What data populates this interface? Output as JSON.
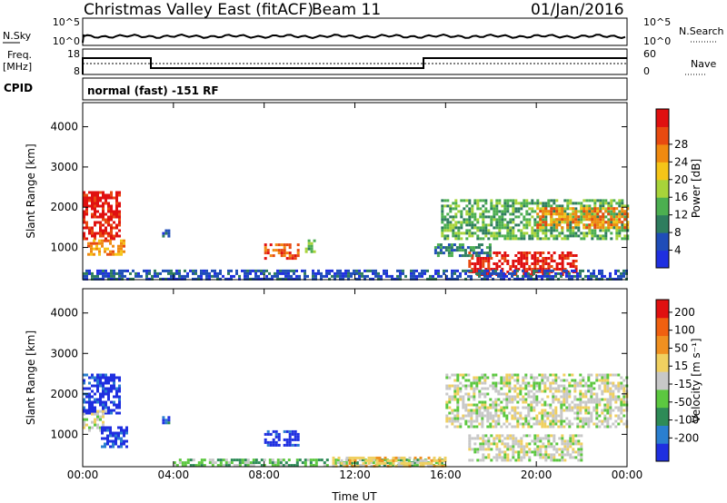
{
  "header": {
    "station": "Christmas Valley East (fitACF)",
    "beam": "Beam 11",
    "date": "01/Jan/2016"
  },
  "top_panels": {
    "nsky_label": "N.Sky",
    "nsky_ticks": [
      "10^5",
      "10^0"
    ],
    "nsearch_label": "N.Search",
    "nsearch_ticks": [
      "10^5",
      "10^0"
    ],
    "freq_label": "Freq.",
    "freq_unit": "[MHz]",
    "freq_ticks": [
      "18",
      "8"
    ],
    "nave_label": "Nave",
    "nave_ticks": [
      "60",
      "0"
    ],
    "cpid_label": "CPID",
    "cpid_text": "normal (fast) -151 RF"
  },
  "chart_data": [
    {
      "type": "heatmap",
      "name": "power",
      "ylabel": "Slant Range [km]",
      "y_ticks": [
        "1000",
        "2000",
        "3000",
        "4000"
      ],
      "y_tick_values": [
        1000,
        2000,
        3000,
        4000
      ],
      "ylim": [
        200,
        4600
      ],
      "x_ticks": [
        "00:00",
        "04:00",
        "08:00",
        "12:00",
        "16:00",
        "20:00",
        "00:00"
      ],
      "x_tick_hours": [
        0,
        4,
        8,
        12,
        16,
        20,
        24
      ],
      "xlim": [
        0,
        24
      ],
      "colorbar": {
        "label": "Power [dB]",
        "ticks": [
          "4",
          "8",
          "12",
          "16",
          "20",
          "24",
          "28"
        ],
        "colors": [
          "#1f2fe0",
          "#1f4db8",
          "#2e7d5e",
          "#4caf50",
          "#a8d43a",
          "#f5c518",
          "#f08a10",
          "#e84a10",
          "#e01010"
        ]
      },
      "regions": [
        {
          "t0": 0.0,
          "t1": 1.6,
          "r0": 1200,
          "r1": 2400,
          "level": 8
        },
        {
          "t0": 0.2,
          "t1": 1.8,
          "r0": 800,
          "r1": 1200,
          "level": 6
        },
        {
          "t0": 8.0,
          "t1": 9.5,
          "r0": 700,
          "r1": 1100,
          "level": 7
        },
        {
          "t0": 9.8,
          "t1": 10.2,
          "r0": 900,
          "r1": 1200,
          "level": 3
        },
        {
          "t0": 3.5,
          "t1": 3.8,
          "r0": 1300,
          "r1": 1450,
          "level": 1
        },
        {
          "t0": 15.8,
          "t1": 24.0,
          "r0": 1200,
          "r1": 2200,
          "level": 3
        },
        {
          "t0": 17.0,
          "t1": 20.5,
          "r0": 300,
          "r1": 900,
          "level": 8
        },
        {
          "t0": 20.5,
          "t1": 21.8,
          "r0": 350,
          "r1": 900,
          "level": 8
        },
        {
          "t0": 15.5,
          "t1": 18.0,
          "r0": 800,
          "r1": 1100,
          "level": 2
        },
        {
          "t0": 20.0,
          "t1": 24.0,
          "r0": 1500,
          "r1": 2000,
          "level": 6
        },
        {
          "t0": 0.0,
          "t1": 24.0,
          "r0": 200,
          "r1": 450,
          "level": 1
        }
      ]
    },
    {
      "type": "heatmap",
      "name": "velocity",
      "ylabel": "Slant Range [km]",
      "y_ticks": [
        "1000",
        "2000",
        "3000",
        "4000"
      ],
      "y_tick_values": [
        1000,
        2000,
        3000,
        4000
      ],
      "ylim": [
        200,
        4600
      ],
      "x_ticks": [
        "00:00",
        "04:00",
        "08:00",
        "12:00",
        "16:00",
        "20:00",
        "00:00"
      ],
      "x_tick_hours": [
        0,
        4,
        8,
        12,
        16,
        20,
        24
      ],
      "xlim": [
        0,
        24
      ],
      "xlabel": "Time UT",
      "colorbar": {
        "label": "Velocity [m s⁻¹]",
        "ticks": [
          "200",
          "100",
          "50",
          "15",
          "-15",
          "-50",
          "-100",
          "-200"
        ],
        "colors": [
          "#1f2fe0",
          "#2a7fd0",
          "#2e8b57",
          "#5cc840",
          "#c8c8c8",
          "#f0d060",
          "#f09020",
          "#f06010",
          "#e01010"
        ]
      },
      "regions": [
        {
          "t0": 0.0,
          "t1": 1.6,
          "r0": 1500,
          "r1": 2500,
          "level": 0
        },
        {
          "t0": 0.0,
          "t1": 1.0,
          "r0": 1100,
          "r1": 1600,
          "level": 4
        },
        {
          "t0": 0.8,
          "t1": 2.0,
          "r0": 700,
          "r1": 1200,
          "level": 0
        },
        {
          "t0": 8.0,
          "t1": 9.5,
          "r0": 700,
          "r1": 1100,
          "level": 0
        },
        {
          "t0": 3.5,
          "t1": 3.8,
          "r0": 1300,
          "r1": 1450,
          "level": 1
        },
        {
          "t0": 16.0,
          "t1": 24.0,
          "r0": 1200,
          "r1": 2500,
          "level": 4
        },
        {
          "t0": 17.0,
          "t1": 22.0,
          "r0": 350,
          "r1": 1000,
          "level": 4
        },
        {
          "t0": 4.0,
          "t1": 16.0,
          "r0": 200,
          "r1": 400,
          "level": 3
        },
        {
          "t0": 11.0,
          "t1": 16.0,
          "r0": 200,
          "r1": 450,
          "level": 5
        }
      ]
    }
  ]
}
